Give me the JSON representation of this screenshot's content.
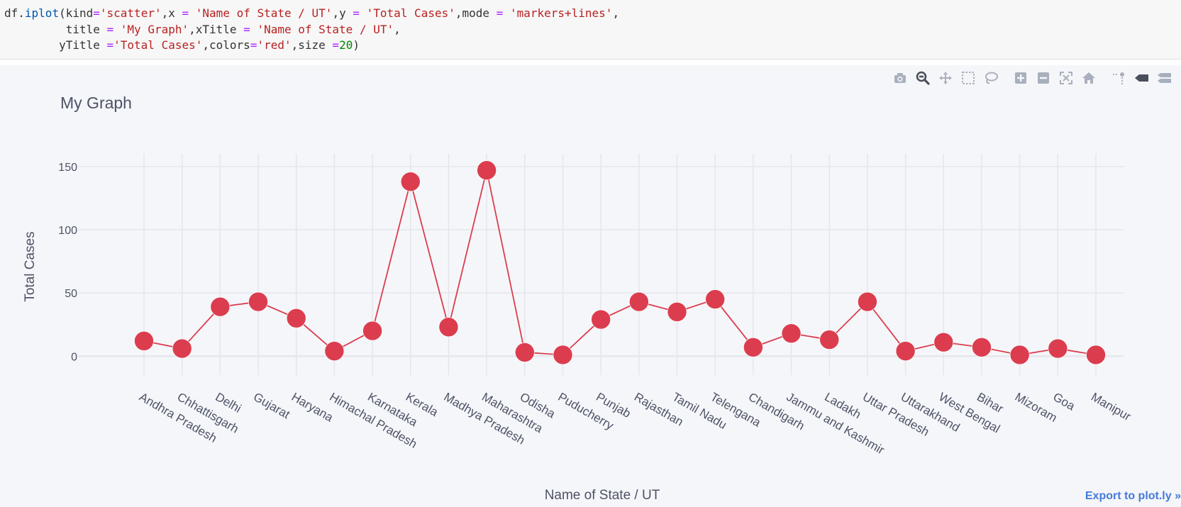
{
  "code_lines": [
    [
      {
        "t": "df.",
        "c": "#333333"
      },
      {
        "t": "iplot",
        "c": "#0055aa"
      },
      {
        "t": "(",
        "c": "#333333"
      },
      {
        "t": "kind",
        "c": "#333333"
      },
      {
        "t": "=",
        "c": "#aa22ff"
      },
      {
        "t": "'scatter'",
        "c": "#ba2121"
      },
      {
        "t": ",x ",
        "c": "#333333"
      },
      {
        "t": "=",
        "c": "#aa22ff"
      },
      {
        "t": " ",
        "c": "#333333"
      },
      {
        "t": "'Name of State / UT'",
        "c": "#ba2121"
      },
      {
        "t": ",y ",
        "c": "#333333"
      },
      {
        "t": "=",
        "c": "#aa22ff"
      },
      {
        "t": " ",
        "c": "#333333"
      },
      {
        "t": "'Total Cases'",
        "c": "#ba2121"
      },
      {
        "t": ",mode ",
        "c": "#333333"
      },
      {
        "t": "=",
        "c": "#aa22ff"
      },
      {
        "t": " ",
        "c": "#333333"
      },
      {
        "t": "'markers+lines'",
        "c": "#ba2121"
      },
      {
        "t": ",",
        "c": "#333333"
      }
    ],
    [
      {
        "t": "         title ",
        "c": "#333333"
      },
      {
        "t": "=",
        "c": "#aa22ff"
      },
      {
        "t": " ",
        "c": "#333333"
      },
      {
        "t": "'My Graph'",
        "c": "#ba2121"
      },
      {
        "t": ",xTitle ",
        "c": "#333333"
      },
      {
        "t": "=",
        "c": "#aa22ff"
      },
      {
        "t": " ",
        "c": "#333333"
      },
      {
        "t": "'Name of State / UT'",
        "c": "#ba2121"
      },
      {
        "t": ",",
        "c": "#333333"
      }
    ],
    [
      {
        "t": "        yTitle ",
        "c": "#333333"
      },
      {
        "t": "=",
        "c": "#aa22ff"
      },
      {
        "t": "'Total Cases'",
        "c": "#ba2121"
      },
      {
        "t": ",colors",
        "c": "#333333"
      },
      {
        "t": "=",
        "c": "#aa22ff"
      },
      {
        "t": "'red'",
        "c": "#ba2121"
      },
      {
        "t": ",size ",
        "c": "#333333"
      },
      {
        "t": "=",
        "c": "#aa22ff"
      },
      {
        "t": "20",
        "c": "#008800"
      },
      {
        "t": ")",
        "c": "#333333"
      }
    ]
  ],
  "modebar": [
    {
      "icon": "camera-icon",
      "group": 1
    },
    {
      "icon": "zoom-icon",
      "group": 1,
      "active": true
    },
    {
      "icon": "pan-icon",
      "group": 1
    },
    {
      "icon": "box-select-icon",
      "group": 1
    },
    {
      "icon": "lasso-select-icon",
      "group": 1
    },
    {
      "icon": "zoom-in-icon",
      "group": 2
    },
    {
      "icon": "zoom-out-icon",
      "group": 2
    },
    {
      "icon": "autoscale-icon",
      "group": 2
    },
    {
      "icon": "reset-axes-icon",
      "group": 2
    },
    {
      "icon": "toggle-spike-lines-icon",
      "group": 3
    },
    {
      "icon": "hover-closest-icon",
      "group": 3
    },
    {
      "icon": "hover-compare-icon",
      "group": 3
    }
  ],
  "export_link": "Export to plot.ly »",
  "colors": {
    "series": "#db3d4f",
    "grid": "#e4e6ec",
    "text": "#4c5366",
    "code_bg": "#f7f7f7",
    "plot_bg": "#f5f6f9",
    "link": "#447adb"
  },
  "chart_data": {
    "type": "line",
    "mode": "markers+lines",
    "title": "My Graph",
    "xlabel": "Name of State / UT",
    "ylabel": "Total Cases",
    "ylim": [
      -15,
      160
    ],
    "yticks": [
      0,
      50,
      100,
      150
    ],
    "grid": true,
    "categories": [
      "Andhra Pradesh",
      "Chhattisgarh",
      "Delhi",
      "Gujarat",
      "Haryana",
      "Himachal Pradesh",
      "Karnataka",
      "Kerala",
      "Madhya Pradesh",
      "Maharashtra",
      "Odisha",
      "Puducherry",
      "Punjab",
      "Rajasthan",
      "Tamil Nadu",
      "Telengana",
      "Chandigarh",
      "Jammu and Kashmir",
      "Ladakh",
      "Uttar Pradesh",
      "Uttarakhand",
      "West Bengal",
      "Bihar",
      "Mizoram",
      "Goa",
      "Manipur"
    ],
    "values": [
      12,
      6,
      39,
      43,
      30,
      4,
      20,
      138,
      23,
      147,
      3,
      1,
      29,
      43,
      35,
      45,
      7,
      18,
      13,
      43,
      4,
      11,
      7,
      1,
      6,
      1
    ]
  }
}
